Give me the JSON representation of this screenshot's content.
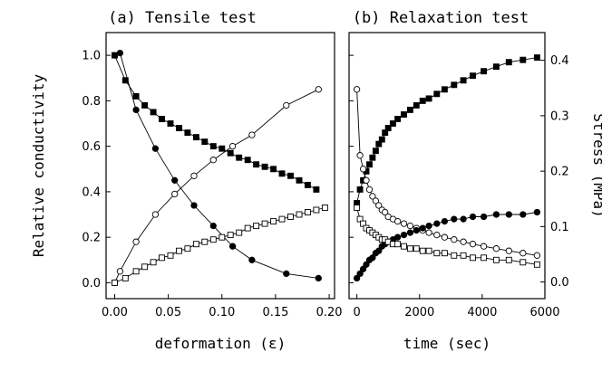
{
  "chart_data": [
    {
      "type": "line",
      "title": "(a) Tensile test",
      "xlabel": "deformation (ε)",
      "ylabel": "Relative conductivity",
      "xlim": [
        -0.008,
        0.205
      ],
      "ylim": [
        -0.07,
        1.1
      ],
      "xticks": [
        0.0,
        0.05,
        0.1,
        0.15,
        0.2
      ],
      "xtick_labels": [
        "0.00",
        "0.05",
        "0.10",
        "0.15",
        "0.20"
      ],
      "yticks": [
        0.0,
        0.2,
        0.4,
        0.6,
        0.8,
        1.0
      ],
      "ytick_labels": [
        "0.0",
        "0.2",
        "0.4",
        "0.6",
        "0.8",
        "1.0"
      ],
      "grid": false,
      "series": [
        {
          "marker": "filled-circle",
          "x": [
            0.0,
            0.005,
            0.02,
            0.038,
            0.056,
            0.074,
            0.092,
            0.11,
            0.128,
            0.16,
            0.19
          ],
          "y": [
            1.0,
            1.01,
            0.76,
            0.59,
            0.45,
            0.34,
            0.25,
            0.16,
            0.1,
            0.04,
            0.02
          ]
        },
        {
          "marker": "filled-square",
          "x": [
            0.0,
            0.01,
            0.02,
            0.028,
            0.036,
            0.044,
            0.052,
            0.06,
            0.068,
            0.076,
            0.084,
            0.092,
            0.1,
            0.108,
            0.116,
            0.124,
            0.132,
            0.14,
            0.148,
            0.156,
            0.164,
            0.172,
            0.18,
            0.188
          ],
          "y": [
            1.0,
            0.89,
            0.82,
            0.78,
            0.75,
            0.72,
            0.7,
            0.68,
            0.66,
            0.64,
            0.62,
            0.6,
            0.59,
            0.57,
            0.55,
            0.54,
            0.52,
            0.51,
            0.5,
            0.48,
            0.47,
            0.45,
            0.43,
            0.41
          ]
        },
        {
          "marker": "open-circle",
          "x": [
            0.0,
            0.005,
            0.02,
            0.038,
            0.056,
            0.074,
            0.092,
            0.11,
            0.128,
            0.16,
            0.19
          ],
          "y": [
            0.0,
            0.05,
            0.18,
            0.3,
            0.39,
            0.47,
            0.54,
            0.6,
            0.65,
            0.78,
            0.85
          ]
        },
        {
          "marker": "open-square",
          "x": [
            0.0,
            0.01,
            0.02,
            0.028,
            0.036,
            0.044,
            0.052,
            0.06,
            0.068,
            0.076,
            0.084,
            0.092,
            0.1,
            0.108,
            0.116,
            0.124,
            0.132,
            0.14,
            0.148,
            0.156,
            0.164,
            0.172,
            0.18,
            0.188,
            0.196
          ],
          "y": [
            0.0,
            0.02,
            0.05,
            0.07,
            0.09,
            0.11,
            0.12,
            0.14,
            0.15,
            0.17,
            0.18,
            0.19,
            0.2,
            0.21,
            0.22,
            0.24,
            0.25,
            0.26,
            0.27,
            0.28,
            0.29,
            0.3,
            0.31,
            0.32,
            0.33
          ]
        }
      ]
    },
    {
      "type": "line",
      "title": "(b) Relaxation test",
      "xlabel": "time (sec)",
      "ylabel": "Stress (MPa)",
      "xlim": [
        -250,
        6000
      ],
      "ylim_left": [
        -0.07,
        1.1
      ],
      "ylim_right": [
        -0.03,
        0.45
      ],
      "xticks": [
        0,
        2000,
        4000,
        6000
      ],
      "xtick_labels": [
        "0",
        "2000",
        "4000",
        "6000"
      ],
      "yticks_right": [
        0.0,
        0.1,
        0.2,
        0.3,
        0.4
      ],
      "ytick_labels_right": [
        "0.0",
        "0.1",
        "0.2",
        "0.3",
        "0.4"
      ],
      "grid": false,
      "series": [
        {
          "marker": "filled-square",
          "axis": "left",
          "x": [
            0,
            100,
            200,
            300,
            400,
            500,
            600,
            700,
            800,
            900,
            1000,
            1150,
            1300,
            1500,
            1700,
            1900,
            2100,
            2300,
            2550,
            2800,
            3100,
            3400,
            3700,
            4050,
            4450,
            4850,
            5300,
            5750
          ],
          "y": [
            0.35,
            0.41,
            0.45,
            0.49,
            0.52,
            0.55,
            0.58,
            0.61,
            0.63,
            0.66,
            0.68,
            0.7,
            0.72,
            0.74,
            0.76,
            0.78,
            0.8,
            0.81,
            0.83,
            0.85,
            0.87,
            0.89,
            0.91,
            0.93,
            0.95,
            0.97,
            0.98,
            0.99
          ]
        },
        {
          "marker": "open-circle",
          "axis": "left",
          "x": [
            0,
            100,
            200,
            300,
            400,
            500,
            600,
            700,
            800,
            900,
            1000,
            1150,
            1300,
            1500,
            1700,
            1900,
            2100,
            2300,
            2550,
            2800,
            3100,
            3400,
            3700,
            4050,
            4450,
            4850,
            5300,
            5750
          ],
          "y": [
            0.85,
            0.56,
            0.5,
            0.45,
            0.41,
            0.38,
            0.36,
            0.34,
            0.32,
            0.31,
            0.29,
            0.28,
            0.27,
            0.26,
            0.25,
            0.24,
            0.23,
            0.22,
            0.21,
            0.2,
            0.19,
            0.18,
            0.17,
            0.16,
            0.15,
            0.14,
            0.13,
            0.12
          ]
        },
        {
          "marker": "filled-circle",
          "axis": "left",
          "x": [
            0,
            100,
            200,
            300,
            400,
            500,
            600,
            700,
            800,
            900,
            1000,
            1150,
            1300,
            1500,
            1700,
            1900,
            2100,
            2300,
            2550,
            2800,
            3100,
            3400,
            3700,
            4050,
            4450,
            4850,
            5300,
            5750
          ],
          "y": [
            0.02,
            0.04,
            0.06,
            0.08,
            0.1,
            0.11,
            0.13,
            0.14,
            0.16,
            0.17,
            0.18,
            0.19,
            0.2,
            0.21,
            0.22,
            0.23,
            0.24,
            0.25,
            0.26,
            0.27,
            0.28,
            0.28,
            0.29,
            0.29,
            0.3,
            0.3,
            0.3,
            0.31
          ]
        },
        {
          "marker": "open-square",
          "axis": "left",
          "x": [
            0,
            100,
            200,
            300,
            400,
            500,
            600,
            700,
            800,
            900,
            1000,
            1150,
            1300,
            1500,
            1700,
            1900,
            2100,
            2300,
            2550,
            2800,
            3100,
            3400,
            3700,
            4050,
            4450,
            4850,
            5300,
            5750
          ],
          "y": [
            0.33,
            0.28,
            0.26,
            0.24,
            0.23,
            0.22,
            0.21,
            0.2,
            0.19,
            0.19,
            0.18,
            0.17,
            0.17,
            0.16,
            0.15,
            0.15,
            0.14,
            0.14,
            0.13,
            0.13,
            0.12,
            0.12,
            0.11,
            0.11,
            0.1,
            0.1,
            0.09,
            0.08
          ]
        }
      ]
    }
  ]
}
